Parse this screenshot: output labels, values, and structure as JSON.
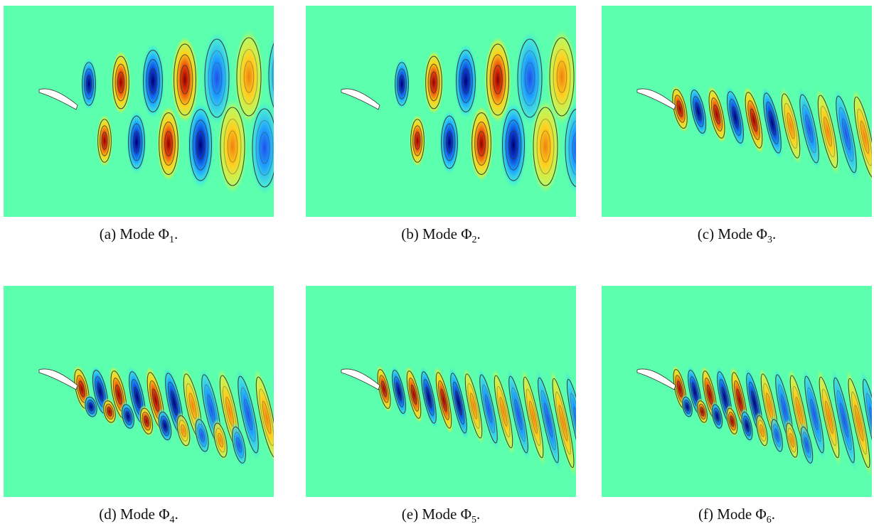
{
  "panels": [
    {
      "label": "(a)",
      "text": "Mode Φ",
      "subscript": "1",
      "end": "."
    },
    {
      "label": "(b)",
      "text": "Mode Φ",
      "subscript": "2",
      "end": "."
    },
    {
      "label": "(c)",
      "text": "Mode Φ",
      "subscript": "3",
      "end": "."
    },
    {
      "label": "(d)",
      "text": "Mode Φ",
      "subscript": "4",
      "end": "."
    },
    {
      "label": "(e)",
      "text": "Mode Φ",
      "subscript": "5",
      "end": "."
    },
    {
      "label": "(f)",
      "text": "Mode Φ",
      "subscript": "6",
      "end": "."
    }
  ]
}
